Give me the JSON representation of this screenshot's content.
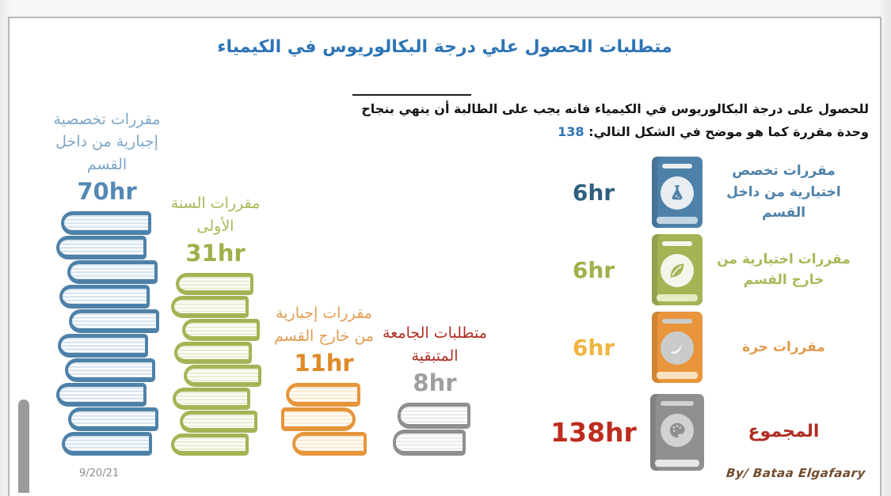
{
  "title": "متطلبات الحصول علي درجة البكالوريوس في الكيمياء",
  "intro": {
    "line1": "للحصول على درجة البكالوريوس في الكيمياء فانه يجب على الطالبة أن ينهي بنجاح",
    "number": "138",
    "line2": "وحدة مقررة كما هو موضح في الشكل التالي:"
  },
  "stacks": [
    {
      "label": "مقررات تخصصية إجبارية من داخل القسم",
      "hours": "70hr",
      "book_count": 10,
      "colors": {
        "spine": "#4E81A8",
        "page": "#D9E5EF",
        "label": "#7EA6C8",
        "hours": "#5488B4"
      }
    },
    {
      "label": "مقررات السنة الأولى",
      "hours": "31hr",
      "book_count": 8,
      "colors": {
        "spine": "#A3B455",
        "page": "#EAEFD4",
        "label": "#A8B958",
        "hours": "#9FB04A"
      }
    },
    {
      "label": "مقررات إجبارية من خارج القسم",
      "hours": "11hr",
      "book_count": 3,
      "colors": {
        "spine": "#E5963B",
        "page": "#FBEBD2",
        "label": "#E29C51",
        "hours": "#E08A28"
      }
    },
    {
      "label": "متطلبات الجامعة المتبقية",
      "hours": "8hr",
      "book_count": 2,
      "colors": {
        "spine": "#8F8F8F",
        "page": "#ECECEC",
        "label": "#B02E23",
        "hours": "#9E9E9E"
      }
    }
  ],
  "legend": [
    {
      "hours": "6hr",
      "label": "مقررات تخصص اختيارية من داخل القسم",
      "icon": "flask-book-icon",
      "colors": {
        "value": "#2E5F7E",
        "cover": "#4E81A8",
        "pages": "#C2D6E4",
        "circle": "#E9EEF2",
        "glyph": "#4E81A8",
        "label": "#4E81A8"
      }
    },
    {
      "hours": "6hr",
      "label": "مقررات اختيارية من خارج القسم",
      "icon": "leaf-book-icon",
      "colors": {
        "value": "#9FB04A",
        "cover": "#A3B455",
        "pages": "#E4ECC4",
        "circle": "#F4F6EC",
        "glyph": "#A3B455",
        "label": "#A8B958"
      }
    },
    {
      "hours": "6hr",
      "label": "مقررات حرة",
      "icon": "feather-book-icon",
      "colors": {
        "value": "#F0B43F",
        "cover": "#E8953C",
        "pages": "#FAE3C0",
        "circle": "#CBCBCB",
        "glyph": "#F4F4F4",
        "label": "#E09A4D"
      }
    },
    {
      "hours": "138hr",
      "label": "المجموع",
      "icon": "palette-book-icon",
      "colors": {
        "value": "#BE2B1D",
        "cover": "#8F8F8F",
        "pages": "#E6E6E6",
        "circle": "#D2D2D2",
        "glyph": "#8F8F8F",
        "label": "#B02E23"
      }
    }
  ],
  "footer": {
    "date": "9/20/21",
    "credit": "By/ Bataa Elgafaary"
  },
  "chart_data": {
    "type": "bar",
    "title": "متطلبات الحصول علي درجة البكالوريوس في الكيمياء",
    "subtitle": "للحصول على درجة البكالوريوس في الكيمياء فانه يجب على الطالبة أن ينهي بنجاح 138 وحدة مقررة كما هو موضح في الشكل التالي:",
    "unit": "hr",
    "categories": [
      "مقررات تخصصية إجبارية من داخل القسم",
      "مقررات السنة الأولى",
      "مقررات إجبارية من خارج القسم",
      "متطلبات الجامعة المتبقية",
      "مقررات تخصص اختيارية من داخل القسم",
      "مقررات اختيارية من خارج القسم",
      "مقررات حرة"
    ],
    "values": [
      70,
      31,
      11,
      8,
      6,
      6,
      6
    ],
    "bar_colors": [
      "#4E81A8",
      "#A3B455",
      "#E5963B",
      "#8F8F8F",
      "#4E81A8",
      "#A3B455",
      "#E8953C"
    ],
    "total": {
      "label": "المجموع",
      "value": 138
    },
    "legend_position": "right",
    "grid": false
  }
}
